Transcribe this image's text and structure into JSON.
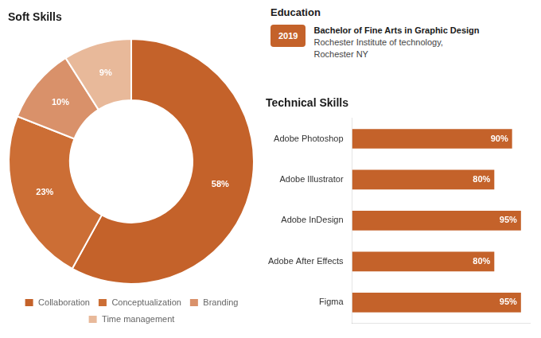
{
  "chart_data": [
    {
      "type": "doughnut",
      "title": "Soft Skills",
      "categories": [
        "Collaboration",
        "Conceptualization",
        "Branding",
        "Time management"
      ],
      "values": [
        58,
        23,
        10,
        9
      ],
      "value_labels": [
        "58%",
        "23%",
        "10%",
        "9%"
      ],
      "data_labels": true,
      "colors": [
        "#C4622A",
        "#CC6E35",
        "#D9916A",
        "#E8B99A"
      ],
      "legend": "bottom"
    },
    {
      "type": "text",
      "title": "Education",
      "annotations": [
        "2019",
        "Bachelor of Fine Arts in Graphic Design",
        "Rochester Institute of technology,",
        "Rochester NY"
      ],
      "color": "#C4622A"
    },
    {
      "type": "bar",
      "title": "Technical Skills",
      "orientation": "horizontal",
      "categories": [
        "Adobe Photoshop",
        "Adobe Illustrator",
        "Adobe InDesign",
        "Adobe After Effects",
        "Figma"
      ],
      "values": [
        90,
        80,
        95,
        80,
        95
      ],
      "value_labels": [
        "90%",
        "80%",
        "95%",
        "80%",
        "95%"
      ],
      "data_labels": true,
      "color": "#C4622A",
      "xlim": [
        0,
        100
      ],
      "tick_labels": "y",
      "grid": false
    }
  ]
}
